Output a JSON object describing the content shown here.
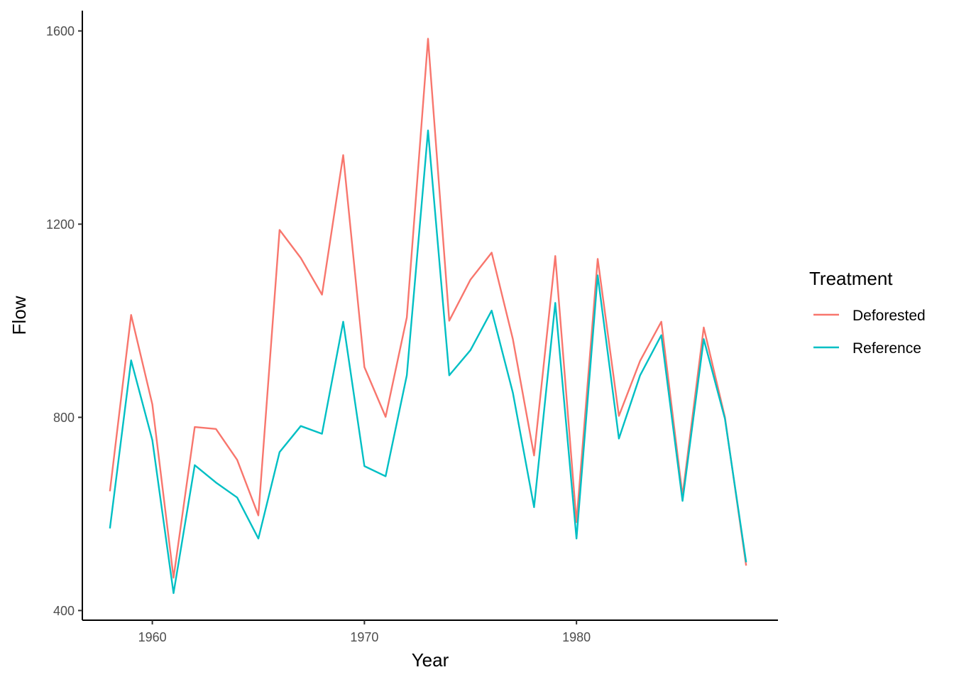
{
  "chart_data": {
    "type": "line",
    "xlabel": "Year",
    "ylabel": "Flow",
    "xlim": [
      1956.7,
      1989.5
    ],
    "ylim": [
      380,
      1642
    ],
    "x_ticks": [
      1960,
      1970,
      1980
    ],
    "y_ticks": [
      400,
      800,
      1200,
      1600
    ],
    "grid": false,
    "legend": {
      "title": "Treatment",
      "position": "right"
    },
    "x": [
      1958,
      1959,
      1960,
      1961,
      1962,
      1963,
      1964,
      1965,
      1966,
      1967,
      1968,
      1969,
      1970,
      1971,
      1972,
      1973,
      1974,
      1975,
      1976,
      1977,
      1978,
      1979,
      1980,
      1981,
      1982,
      1983,
      1984,
      1985,
      1986,
      1987,
      1988
    ],
    "series": [
      {
        "name": "Deforested",
        "color": "#F8766D",
        "values": [
          647,
          1012,
          827,
          468,
          780,
          776,
          712,
          597,
          1188,
          1130,
          1054,
          1343,
          904,
          801,
          1007,
          1584,
          1000,
          1085,
          1141,
          962,
          721,
          1134,
          583,
          1128,
          803,
          917,
          998,
          638,
          986,
          800,
          493
        ]
      },
      {
        "name": "Reference",
        "color": "#00BFC4",
        "values": [
          570,
          918,
          753,
          436,
          701,
          665,
          634,
          549,
          728,
          782,
          766,
          998,
          699,
          678,
          887,
          1394,
          887,
          939,
          1021,
          851,
          614,
          1037,
          549,
          1094,
          756,
          887,
          970,
          627,
          962,
          797,
          500
        ]
      }
    ]
  }
}
